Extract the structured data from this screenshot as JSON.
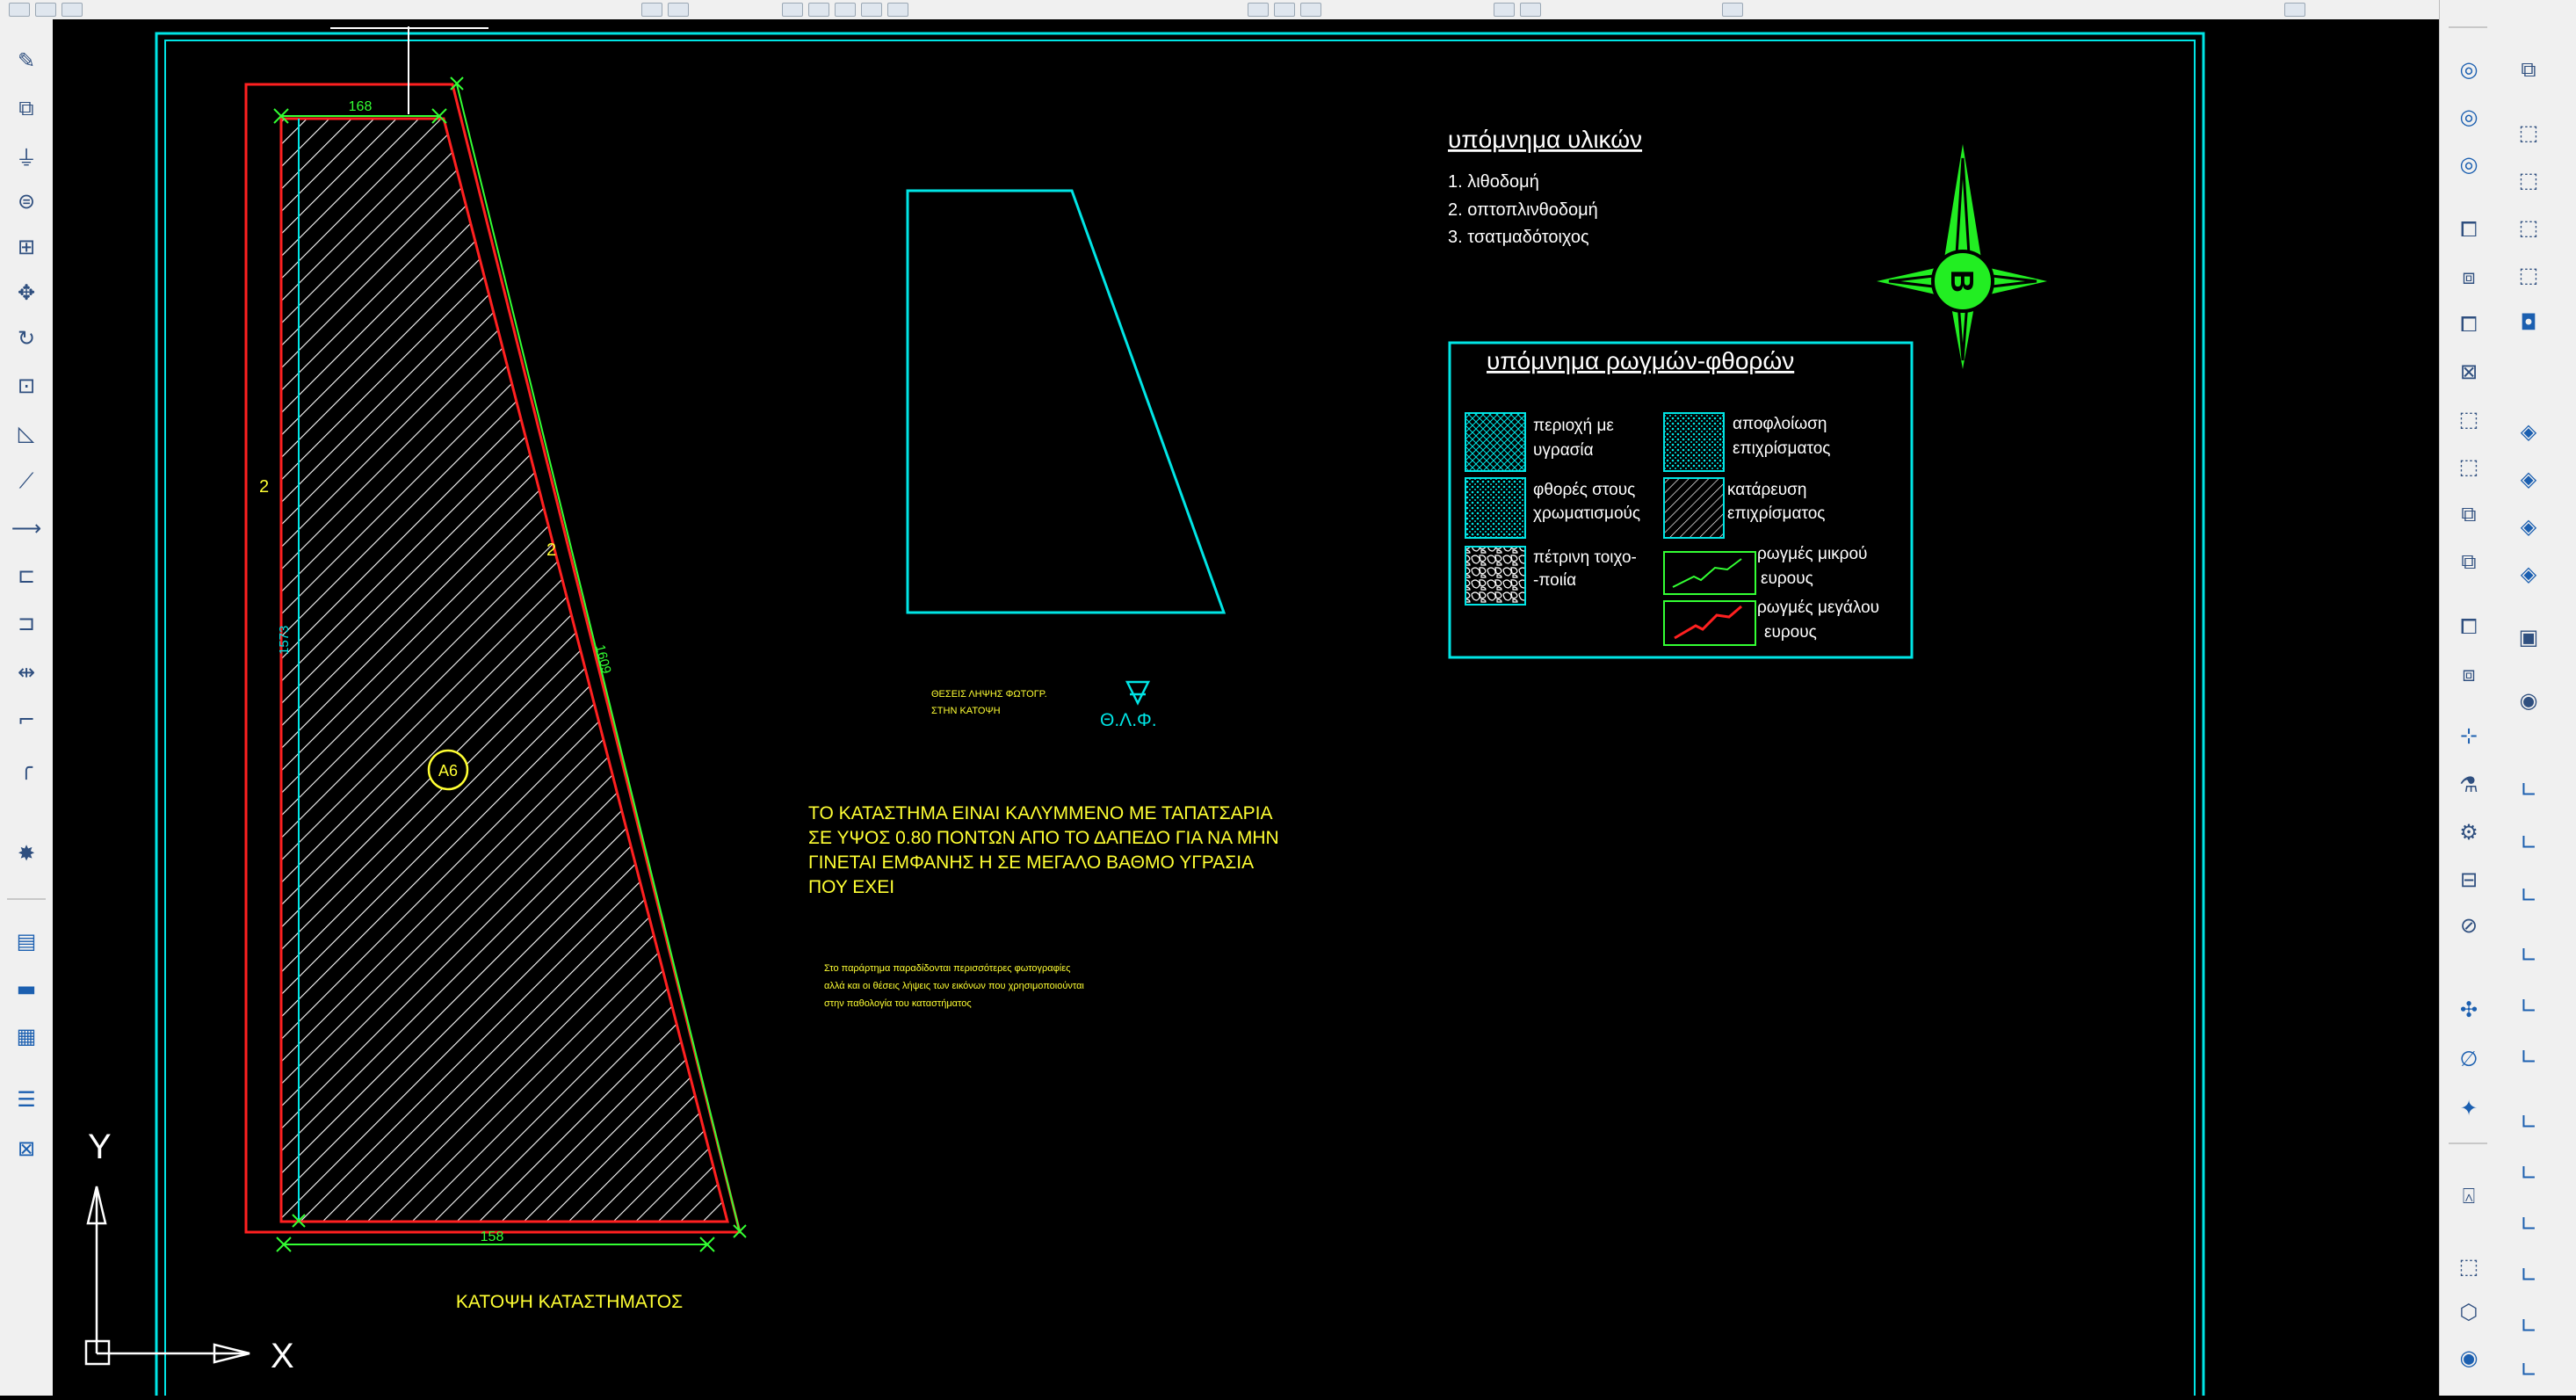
{
  "drawing": {
    "dimensions": {
      "top_width": "168",
      "bottom_width": "158",
      "left_height": "2",
      "right_height": "2",
      "slant_length": "1609",
      "inner_left": "1573"
    },
    "room_tag": "A6",
    "plan_title": "ΚΑΤΟΨΗ ΚΑΤΑΣΤΗΜΑΤΟΣ",
    "photo_positions_label_line1": "ΘΕΣΕΙΣ ΛΗΨΗΣ ΦΩΤΟΓΡ.",
    "photo_positions_label_line2": "ΣΤΗΝ ΚΑΤΟΨΗ",
    "photo_symbol_label": "Θ.Λ.Φ.",
    "note_line1": "ΤΟ ΚΑΤΑΣΤΗΜΑ ΕΙΝΑΙ ΚΑΛΥΜΜΕΝΟ ΜΕ ΤΑΠΑΤΣΑΡΙΑ",
    "note_line2": "ΣΕ ΥΨΟΣ 0.80 ΠΟΝΤΩΝ ΑΠΟ ΤΟ ΔΑΠΕΔΟ ΓΙΑ ΝΑ ΜΗΝ",
    "note_line3": "ΓΙΝΕΤΑΙ ΕΜΦΑΝΗΣ Η ΣΕ ΜΕΓΑΛΟ ΒΑΘΜΟ ΥΓΡΑΣΙΑ",
    "note_line4": "ΠΟΥ ΕΧΕΙ",
    "small_note_line1": "Στο παράρτημα παραδίδονται περισσότερες φωτογραφίες",
    "small_note_line2": "αλλά και οι θέσεις λήψεις των εικόνων που χρησιμοποιούνται",
    "small_note_line3": "στην παθολογία του καταστήματος",
    "materials_legend": {
      "title": "υπόμνημα υλικών",
      "items": [
        "1. λιθοδομή",
        "2. οπτοπλινθοδομή",
        "3. τσατμαδότοιχος"
      ]
    },
    "damage_legend": {
      "title": "υπόμνημα ρωγμών-φθορών",
      "humidity_l1": "περιοχή με",
      "humidity_l2": "υγρασία",
      "peeling_l1": "αποφλοίωση",
      "peeling_l2": "επιχρίσματος",
      "paint_l1": "φθορές στους",
      "paint_l2": "χρωματισμούς",
      "collapse_l1": "κατάρευση",
      "collapse_l2": "επιχρίσματος",
      "stone_l1": "πέτρινη τοιχο-",
      "stone_l2": "-ποιία",
      "small_crack_l1": "ρωγμές μικρού",
      "small_crack_l2": "ευρους",
      "large_crack_l1": "ρωγμές μεγάλου",
      "large_crack_l2": "ευρους"
    },
    "north_label": "B",
    "ucs_y": "Y",
    "ucs_x": "X"
  },
  "icons": {
    "left_toolbar": [
      "pencil-icon",
      "copy-icon",
      "mirror-icon",
      "offset-icon",
      "array-icon",
      "move-icon",
      "rotate-icon",
      "scale-icon",
      "stretch-icon",
      "trim-icon",
      "extend-icon",
      "break-icon",
      "join-icon",
      "chamfer-icon",
      "fillet-icon",
      "explode-icon",
      "layer-icon",
      "ruler-icon",
      "measure-icon",
      "properties-icon",
      "zoom-icon"
    ],
    "right_toolbar": [
      "solid-union-icon",
      "solid-subtract-icon",
      "solid-intersect-icon",
      "view-front-icon",
      "view-top-icon",
      "view-right-icon",
      "view-iso-icon",
      "box-icon",
      "sphere-icon",
      "cylinder-icon",
      "cone-icon",
      "ucs-icon",
      "ucs-world-icon",
      "render-icon",
      "camera-icon",
      "orbit-icon"
    ]
  },
  "colors": {
    "frame": "#00e5e5",
    "boundary": "#ff2020",
    "hatch": "#ffffff",
    "dim": "#33ff33",
    "text": "#ffff33",
    "compass": "#22ee22"
  }
}
